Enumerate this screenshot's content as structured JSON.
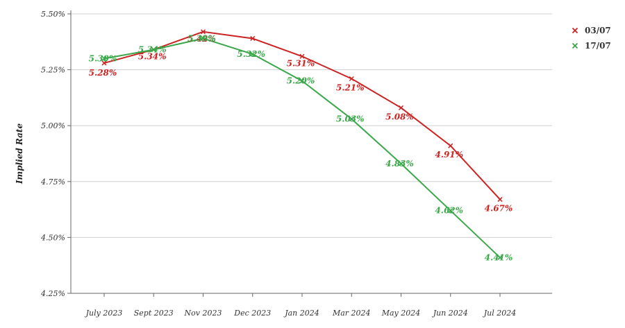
{
  "chart_data": {
    "type": "line",
    "title": "",
    "xlabel": "",
    "ylabel": "Implied Rate",
    "categories": [
      "July 2023",
      "Sept 2023",
      "Nov 2023",
      "Dec 2023",
      "Jan 2024",
      "Mar 2024",
      "May 2024",
      "Jun 2024",
      "Jul 2024"
    ],
    "ylim": [
      4.25,
      5.5
    ],
    "yticks": [
      5.5,
      5.25,
      5.0,
      4.75,
      4.5,
      4.25
    ],
    "ytick_labels": [
      "5.50%",
      "5.25%",
      "5.00%",
      "4.75%",
      "4.50%",
      "4.25%"
    ],
    "grid": true,
    "legend_position": "top-right",
    "series": [
      {
        "name": "03/07",
        "color": "#cc2222",
        "values": [
          5.28,
          5.34,
          5.42,
          5.39,
          5.31,
          5.21,
          5.08,
          4.91,
          4.67
        ],
        "labels": [
          "5.28%",
          "5.34%",
          "5.42%",
          "",
          "5.31%",
          "5.21%",
          "5.08%",
          "4.91%",
          "4.67%"
        ]
      },
      {
        "name": "17/07",
        "color": "#3aa84a",
        "values": [
          5.3,
          5.34,
          5.39,
          5.32,
          5.2,
          5.03,
          4.83,
          4.62,
          4.41
        ],
        "labels": [
          "5.30%",
          "5.34%",
          "5.39%",
          "5.32%",
          "5.20%",
          "5.03%",
          "4.83%",
          "4.62%",
          "4.41%"
        ]
      }
    ]
  }
}
